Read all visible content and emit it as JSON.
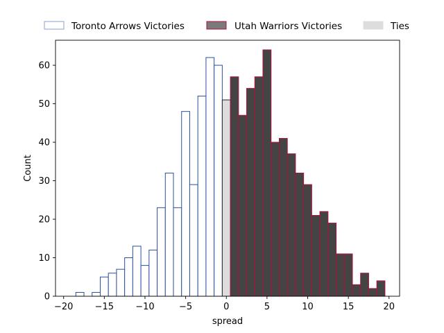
{
  "chart_data": {
    "type": "bar",
    "title": "",
    "xlabel": "spread",
    "ylabel": "Count",
    "xlim": [
      -21,
      21.3
    ],
    "ylim": [
      0,
      66.5
    ],
    "xticks": [
      -20,
      -15,
      -10,
      -5,
      0,
      5,
      10,
      15,
      20
    ],
    "yticks": [
      0,
      10,
      20,
      30,
      40,
      50,
      60
    ],
    "bin_width": 1,
    "legend_position": "top, outside plot",
    "grid": false,
    "series": [
      {
        "name": "Toronto Arrows Victories",
        "fill": "#ffffff",
        "edge": "#2b4fa0",
        "legend_edge": "#8aa0c8",
        "x": [
          -19,
          -18,
          -17,
          -16,
          -15,
          -14,
          -13,
          -12,
          -11,
          -10,
          -9,
          -8,
          -7,
          -6,
          -5,
          -4,
          -3,
          -2,
          -1
        ],
        "values": [
          0,
          1,
          0,
          1,
          5,
          6,
          7,
          10,
          13,
          8,
          12,
          23,
          32,
          23,
          48,
          29,
          52,
          62,
          60
        ]
      },
      {
        "name": "Ties",
        "fill": "#dddddd",
        "edge": "#222222",
        "legend_edge": "#dddddd",
        "x": [
          0
        ],
        "values": [
          51
        ]
      },
      {
        "name": "Utah Warriors Victories",
        "fill": "#444444",
        "edge": "#b0103a",
        "legend_fill": "#7a7a7a",
        "legend_edge": "#b0103a",
        "x": [
          1,
          2,
          3,
          4,
          5,
          6,
          7,
          8,
          9,
          10,
          11,
          12,
          13,
          14,
          15,
          16,
          17,
          18,
          19
        ],
        "values": [
          57,
          47,
          54,
          57,
          64,
          40,
          41,
          37,
          32,
          29,
          21,
          22,
          19,
          11,
          11,
          3,
          6,
          2,
          4
        ]
      }
    ],
    "legend_order": [
      "Toronto Arrows Victories",
      "Utah Warriors Victories",
      "Ties"
    ]
  }
}
